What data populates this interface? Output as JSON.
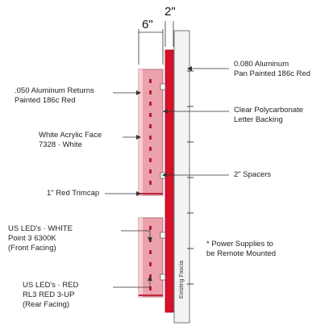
{
  "dimensions": {
    "top_width": "2\"",
    "return_depth": "6\""
  },
  "labels": {
    "aluminum_pan": [
      "0.080 Aluminum",
      "Pan Painted 186c Red"
    ],
    "aluminum_returns": [
      ".050 Aluminum Returns",
      "Painted 186c Red"
    ],
    "polycarbonate": [
      "Clear Polycarbonate",
      "Letter Backing"
    ],
    "acrylic_face": [
      "White Acrylic Face",
      "7328 · White"
    ],
    "spacers": "2\" Spacers",
    "trimcap": "1\" Red Trimcap",
    "led_white": [
      "US LED's · WHITE",
      "Point 3 6300K",
      "(Front Facing)"
    ],
    "power_supplies": [
      "* Power Supplies to",
      "be Remote Mounted"
    ],
    "led_red": [
      "US LED's · RED",
      "RL3 RED 3-UP",
      "(Rear Facing)"
    ],
    "fascia": "Existing Fascia"
  },
  "colors": {
    "pan_red": "#d8102a",
    "return_pink": "#eba2ac",
    "face_tint": "#f4cdd2",
    "led_red": "#b81c2e",
    "fascia_gray": "#f3f3f3",
    "line": "#333333"
  }
}
